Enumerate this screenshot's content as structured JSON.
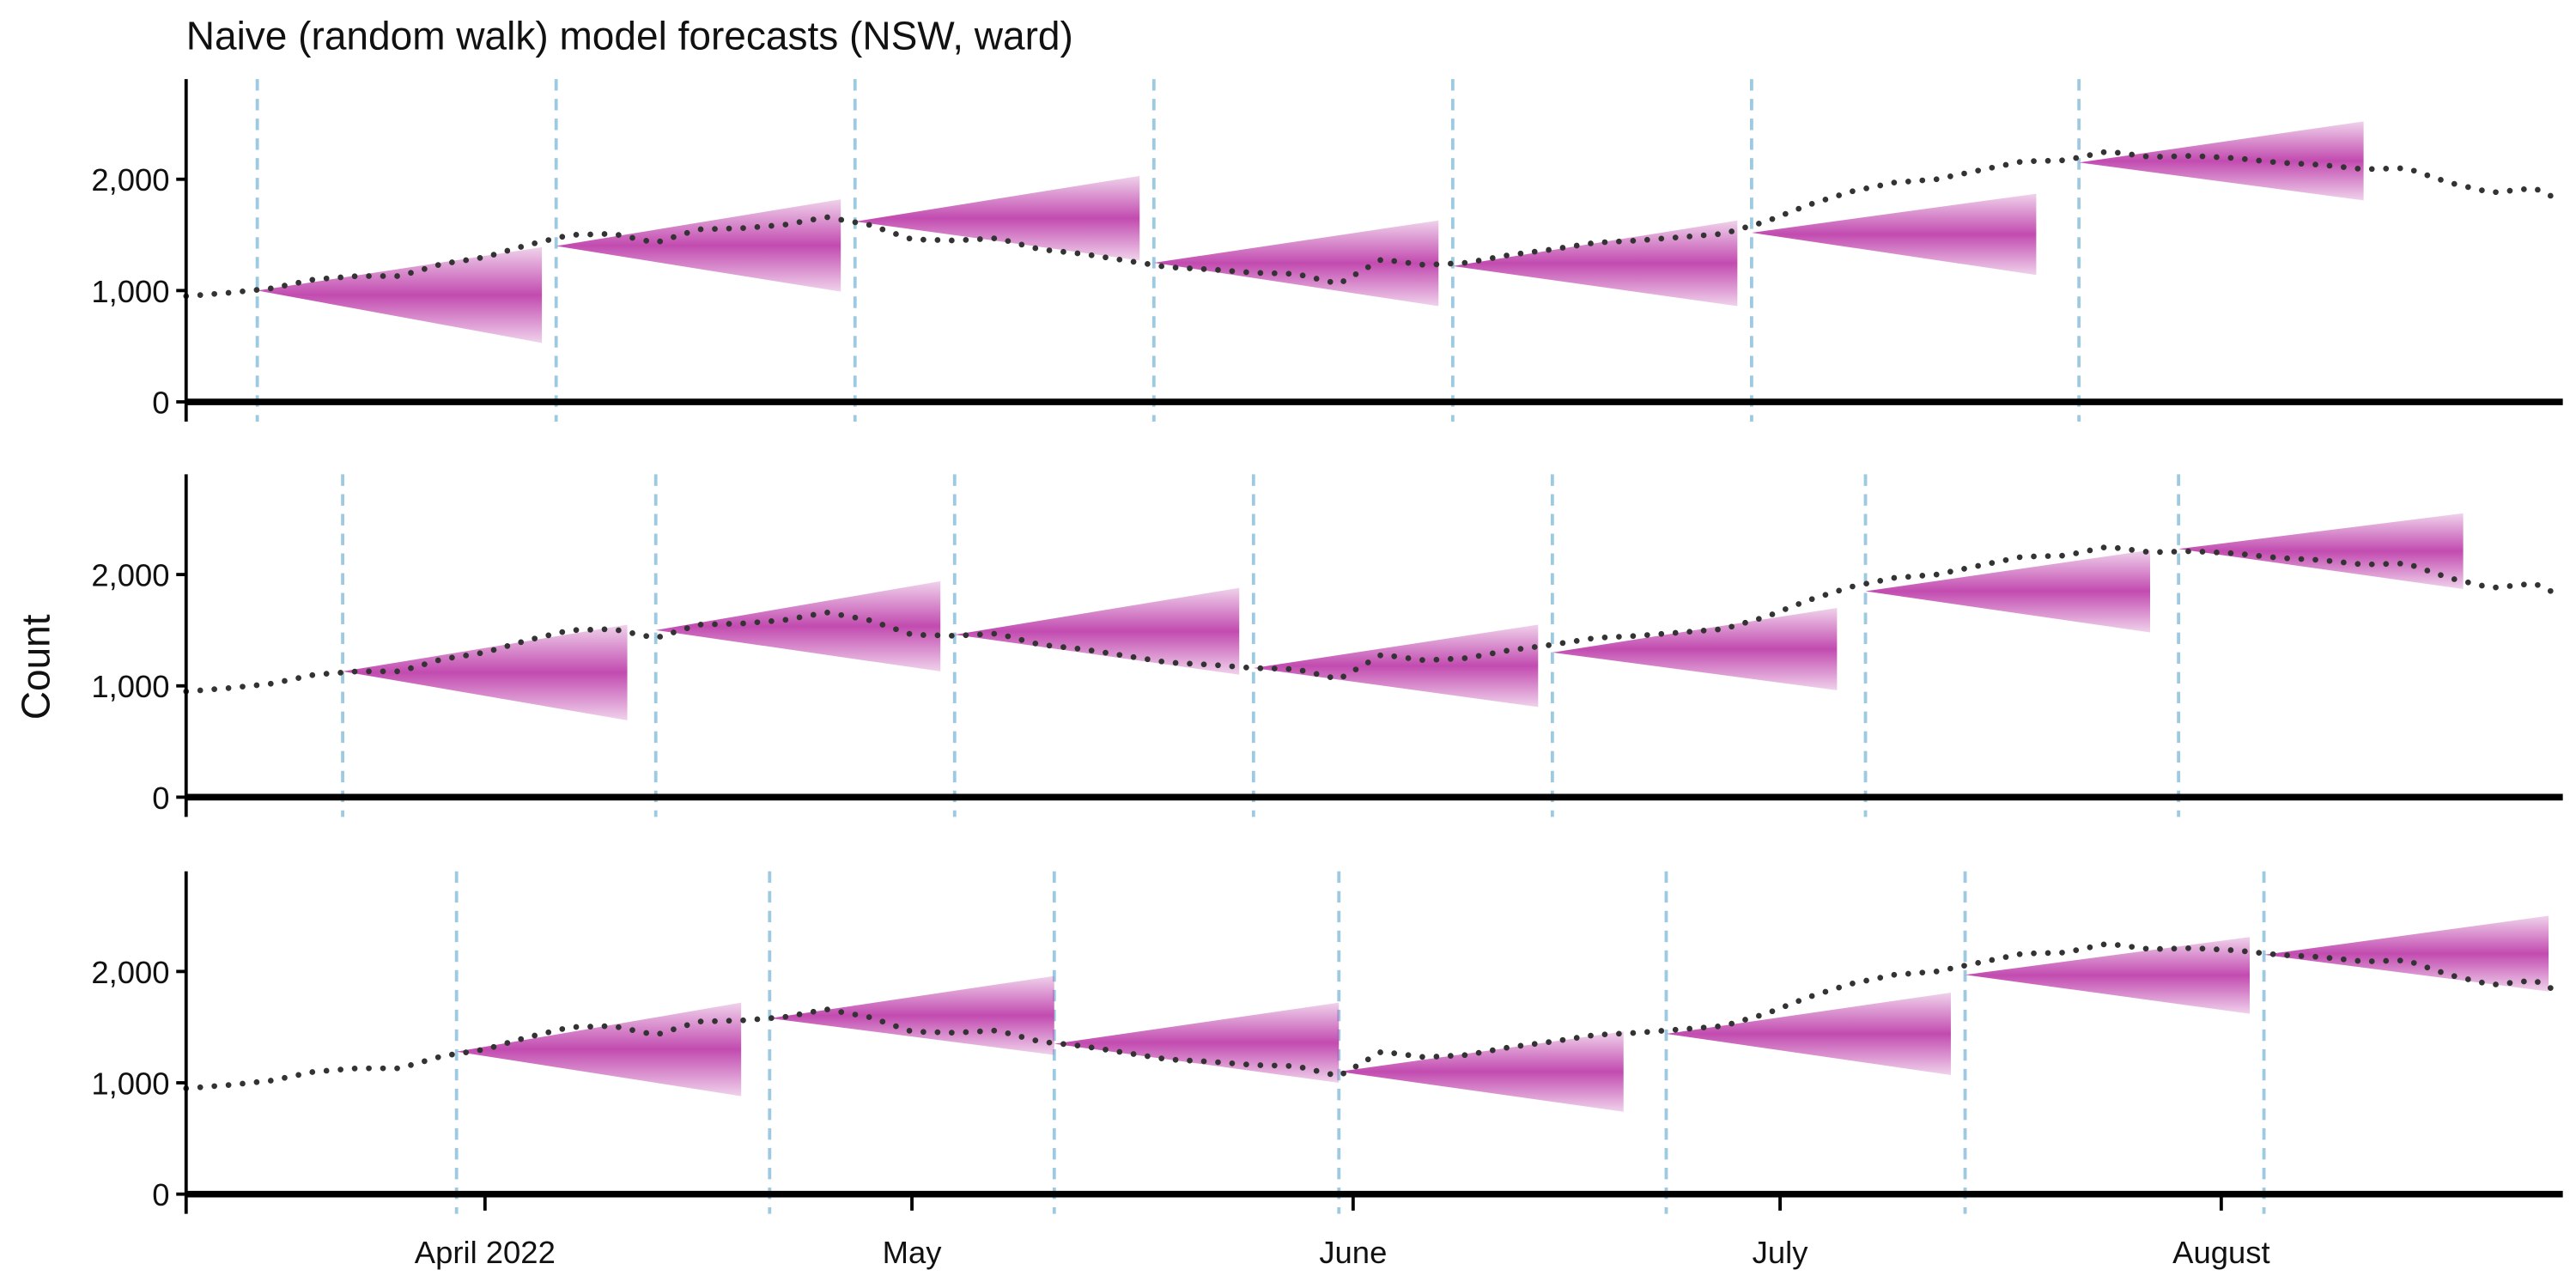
{
  "chart_data": {
    "type": "fan",
    "title": "Naive (random walk) model forecasts (NSW, ward)",
    "ylabel": "Count",
    "xlim": [
      70,
      237
    ],
    "xticks": [
      {
        "value": 91,
        "label": "April 2022"
      },
      {
        "value": 121,
        "label": "May"
      },
      {
        "value": 152,
        "label": "June"
      },
      {
        "value": 182,
        "label": "July"
      },
      {
        "value": 213,
        "label": "August"
      }
    ],
    "ylim": [
      0,
      2900
    ],
    "yticks": [
      0,
      {
        "value": 1000,
        "label": "1,000"
      },
      {
        "value": 2000,
        "label": "2,000"
      }
    ],
    "fan_color": "#c24bb0",
    "line_color": "#333333",
    "origin_color": "#9ecae1",
    "observed": {
      "x": [
        70,
        73,
        76,
        79,
        82,
        85,
        88,
        91,
        94,
        97,
        100,
        103,
        106,
        109,
        112,
        115,
        118,
        121,
        124,
        127,
        130,
        133,
        136,
        139,
        142,
        145,
        148,
        151,
        154,
        157,
        160,
        163,
        166,
        169,
        172,
        175,
        178,
        181,
        184,
        187,
        190,
        193,
        196,
        199,
        202,
        205,
        208,
        211,
        214,
        217,
        220,
        223,
        226,
        229,
        232,
        235,
        237
      ],
      "values": [
        950,
        980,
        1020,
        1100,
        1130,
        1130,
        1240,
        1300,
        1410,
        1500,
        1510,
        1430,
        1550,
        1560,
        1590,
        1660,
        1590,
        1460,
        1450,
        1470,
        1370,
        1330,
        1270,
        1210,
        1190,
        1160,
        1150,
        1060,
        1280,
        1230,
        1250,
        1320,
        1370,
        1430,
        1450,
        1480,
        1510,
        1620,
        1770,
        1890,
        1970,
        2000,
        2080,
        2160,
        2170,
        2250,
        2200,
        2210,
        2190,
        2150,
        2130,
        2090,
        2100,
        1970,
        1880,
        1920,
        1800
      ]
    },
    "panels": [
      {
        "forecasts": [
          {
            "origin": 75,
            "horizon_end": 95,
            "start": 1000,
            "low": 530,
            "high": 1390
          },
          {
            "origin": 96,
            "horizon_end": 116,
            "start": 1400,
            "low": 990,
            "high": 1820
          },
          {
            "origin": 117,
            "horizon_end": 137,
            "start": 1620,
            "low": 1270,
            "high": 2030
          },
          {
            "origin": 138,
            "horizon_end": 158,
            "start": 1250,
            "low": 860,
            "high": 1630
          },
          {
            "origin": 159,
            "horizon_end": 179,
            "start": 1220,
            "low": 860,
            "high": 1630
          },
          {
            "origin": 180,
            "horizon_end": 200,
            "start": 1520,
            "low": 1140,
            "high": 1870
          },
          {
            "origin": 203,
            "horizon_end": 223,
            "start": 2150,
            "low": 1810,
            "high": 2520
          }
        ]
      },
      {
        "forecasts": [
          {
            "origin": 81,
            "horizon_end": 101,
            "start": 1130,
            "low": 690,
            "high": 1550
          },
          {
            "origin": 103,
            "horizon_end": 123,
            "start": 1500,
            "low": 1130,
            "high": 1940
          },
          {
            "origin": 124,
            "horizon_end": 144,
            "start": 1460,
            "low": 1100,
            "high": 1880
          },
          {
            "origin": 145,
            "horizon_end": 165,
            "start": 1160,
            "low": 810,
            "high": 1550
          },
          {
            "origin": 166,
            "horizon_end": 186,
            "start": 1300,
            "low": 960,
            "high": 1700
          },
          {
            "origin": 188,
            "horizon_end": 208,
            "start": 1850,
            "low": 1480,
            "high": 2220
          },
          {
            "origin": 210,
            "horizon_end": 230,
            "start": 2230,
            "low": 1870,
            "high": 2550
          }
        ]
      },
      {
        "forecasts": [
          {
            "origin": 89,
            "horizon_end": 109,
            "start": 1280,
            "low": 880,
            "high": 1720
          },
          {
            "origin": 111,
            "horizon_end": 131,
            "start": 1580,
            "low": 1250,
            "high": 1960
          },
          {
            "origin": 131,
            "horizon_end": 151,
            "start": 1350,
            "low": 1000,
            "high": 1720
          },
          {
            "origin": 151,
            "horizon_end": 171,
            "start": 1100,
            "low": 740,
            "high": 1460
          },
          {
            "origin": 174,
            "horizon_end": 194,
            "start": 1440,
            "low": 1070,
            "high": 1810
          },
          {
            "origin": 195,
            "horizon_end": 215,
            "start": 1970,
            "low": 1620,
            "high": 2310
          },
          {
            "origin": 216,
            "horizon_end": 236,
            "start": 2150,
            "low": 1820,
            "high": 2500
          }
        ]
      }
    ]
  }
}
